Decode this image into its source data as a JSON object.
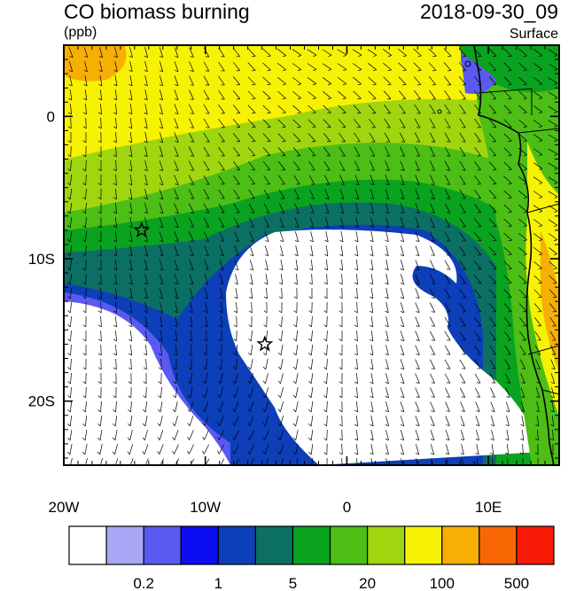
{
  "header": {
    "title": "CO biomass burning",
    "units": "(ppb)",
    "datetime": "2018-09-30_09",
    "level": "Surface"
  },
  "map": {
    "lon_labels": [
      "20W",
      "10W",
      "0",
      "10E"
    ],
    "lat_labels": [
      "0",
      "10S",
      "20S"
    ],
    "lon_range_deg": [
      -20,
      15
    ],
    "lat_range_deg": [
      -24.5,
      5
    ]
  },
  "colorbar": {
    "colors": [
      "#ffffff",
      "#a7a7f5",
      "#5a5af2",
      "#0d0df2",
      "#0c3fb8",
      "#0b7063",
      "#0aa31f",
      "#4cbe16",
      "#9fd60f",
      "#f7f105",
      "#f7af05",
      "#f76805",
      "#f71a05"
    ],
    "labels": [
      "0.2",
      "1",
      "5",
      "20",
      "100",
      "500"
    ]
  },
  "markers": [
    {
      "name": "star-marker-west",
      "lon": -14.5,
      "lat": -8
    },
    {
      "name": "star-marker-central",
      "lon": -5.8,
      "lat": -16
    }
  ]
}
